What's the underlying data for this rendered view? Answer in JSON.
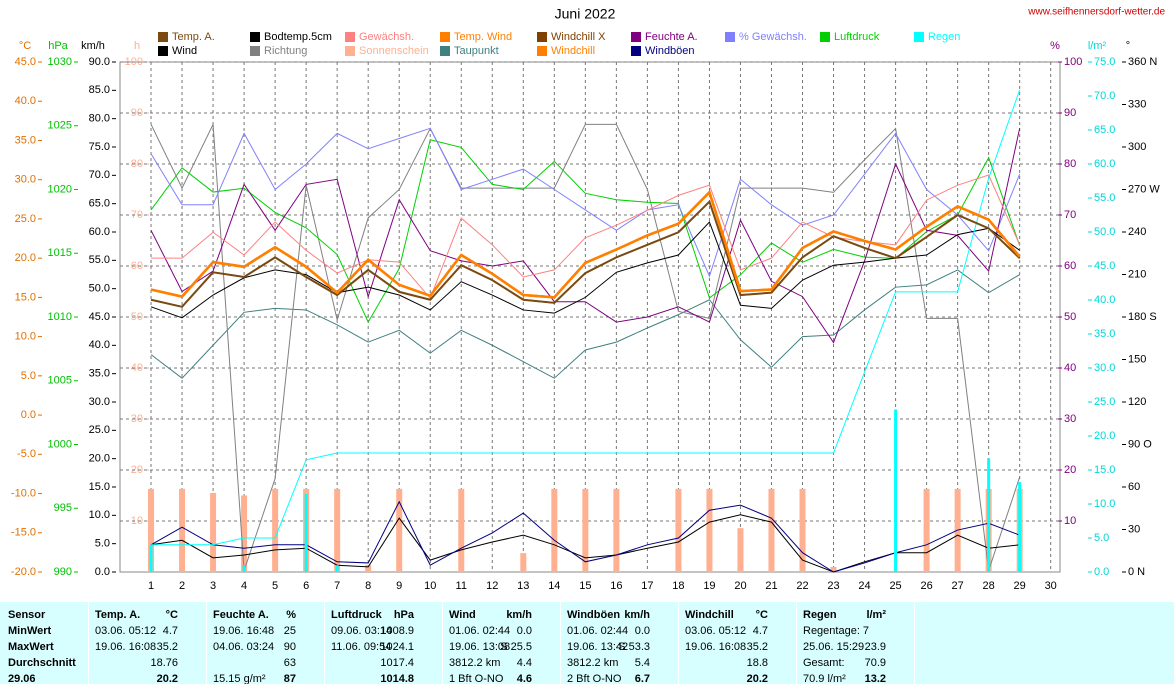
{
  "chart_data": {
    "type": "line",
    "title": "Juni 2022",
    "source": "www.seifhennersdorf-wetter.de",
    "x": [
      1,
      2,
      3,
      4,
      5,
      6,
      7,
      8,
      9,
      10,
      11,
      12,
      13,
      14,
      15,
      16,
      17,
      18,
      19,
      20,
      21,
      22,
      23,
      24,
      25,
      26,
      27,
      28,
      29
    ],
    "xlim": [
      0,
      30.3
    ],
    "xticks": [
      1,
      2,
      3,
      4,
      5,
      6,
      7,
      8,
      9,
      10,
      11,
      12,
      13,
      14,
      15,
      16,
      17,
      18,
      19,
      20,
      21,
      22,
      23,
      24,
      25,
      26,
      27,
      28,
      29,
      30
    ],
    "grid": true,
    "axes": {
      "c": {
        "label": "°C",
        "color": "#e07000",
        "lim": [
          -20,
          45
        ],
        "ticks": [
          {
            "value": 45,
            "label": "45.0"
          },
          {
            "value": 40,
            "label": "40.0"
          },
          {
            "value": 35,
            "label": "35.0"
          },
          {
            "value": 30,
            "label": "30.0"
          },
          {
            "value": 25,
            "label": "25.0"
          },
          {
            "value": 20,
            "label": "20.0"
          },
          {
            "value": 15,
            "label": "15.0"
          },
          {
            "value": 10,
            "label": "10.0"
          },
          {
            "value": 5,
            "label": "5.0"
          },
          {
            "value": 0,
            "label": "0.0"
          },
          {
            "value": -5,
            "label": "-5.0"
          },
          {
            "value": -10,
            "label": "-10.0"
          },
          {
            "value": -15,
            "label": "-15.0"
          },
          {
            "value": -20,
            "label": "-20.0"
          }
        ]
      },
      "hpa": {
        "label": "hPa",
        "color": "#00c000",
        "lim": [
          990,
          1030
        ],
        "ticks": [
          1030,
          1025,
          1020,
          1015,
          1010,
          1005,
          1000,
          995,
          990
        ]
      },
      "kmh": {
        "label": "km/h",
        "color": "#000000",
        "lim": [
          0,
          90
        ],
        "ticks": [
          {
            "value": 90,
            "label": "90.0"
          },
          {
            "value": 85,
            "label": "85.0"
          },
          {
            "value": 80,
            "label": "80.0"
          },
          {
            "value": 75,
            "label": "75.0"
          },
          {
            "value": 70,
            "label": "70.0"
          },
          {
            "value": 65,
            "label": "65.0"
          },
          {
            "value": 60,
            "label": "60.0"
          },
          {
            "value": 55,
            "label": "55.0"
          },
          {
            "value": 50,
            "label": "50.0"
          },
          {
            "value": 45,
            "label": "45.0"
          },
          {
            "value": 40,
            "label": "40.0"
          },
          {
            "value": 35,
            "label": "35.0"
          },
          {
            "value": 30,
            "label": "30.0"
          },
          {
            "value": 25,
            "label": "25.0"
          },
          {
            "value": 20,
            "label": "20.0"
          },
          {
            "value": 15,
            "label": "15.0"
          },
          {
            "value": 10,
            "label": "10.0"
          },
          {
            "value": 5,
            "label": "5.0"
          },
          {
            "value": 0,
            "label": "0.0"
          }
        ]
      },
      "h": {
        "label": "h",
        "color": "#ffb090",
        "lim": [
          0,
          100
        ],
        "ticks": [
          100,
          90,
          80,
          70,
          60,
          50,
          40,
          30,
          20,
          10
        ]
      },
      "pct": {
        "label": "%",
        "color": "#800080",
        "lim": [
          0,
          100
        ],
        "ticks": [
          100,
          90,
          80,
          70,
          60,
          50,
          40,
          30,
          20,
          10
        ]
      },
      "rain": {
        "label": "l/m²",
        "color": "#00d8d8",
        "lim": [
          0,
          75
        ],
        "ticks": [
          {
            "value": 75,
            "label": "75.0"
          },
          {
            "value": 70,
            "label": "70.0"
          },
          {
            "value": 65,
            "label": "65.0"
          },
          {
            "value": 60,
            "label": "60.0"
          },
          {
            "value": 55,
            "label": "55.0"
          },
          {
            "value": 50,
            "label": "50.0"
          },
          {
            "value": 45,
            "label": "45.0"
          },
          {
            "value": 40,
            "label": "40.0"
          },
          {
            "value": 35,
            "label": "35.0"
          },
          {
            "value": 30,
            "label": "30.0"
          },
          {
            "value": 25,
            "label": "25.0"
          },
          {
            "value": 20,
            "label": "20.0"
          },
          {
            "value": 15,
            "label": "15.0"
          },
          {
            "value": 10,
            "label": "10.0"
          },
          {
            "value": 5,
            "label": "5.0"
          },
          {
            "value": 0,
            "label": "0.0"
          }
        ]
      },
      "deg": {
        "label": "°",
        "color": "#000000",
        "lim": [
          0,
          360
        ],
        "ticks": [
          {
            "value": 360,
            "label": "360 N"
          },
          330,
          300,
          {
            "value": 270,
            "label": "270 W"
          },
          240,
          210,
          {
            "value": 180,
            "label": "180 S"
          },
          150,
          120,
          {
            "value": 90,
            "label": "90 O"
          },
          60,
          30,
          {
            "value": 0,
            "label": "0 N"
          }
        ]
      }
    },
    "series": [
      {
        "name": "Temp. A.",
        "color": "#7a4a10",
        "axis": "c",
        "width": 2,
        "values": [
          14.7,
          13.8,
          18.2,
          17.6,
          20.1,
          17.6,
          15.3,
          18.5,
          15.7,
          14.7,
          19.1,
          17.2,
          14.7,
          14.3,
          18.1,
          20.1,
          21.7,
          23.3,
          27.2,
          15.3,
          15.6,
          20.1,
          22.8,
          21.3,
          20.0,
          22.7,
          25.5,
          23.8,
          20.0
        ]
      },
      {
        "name": "Bodtemp.5cm",
        "color": "#000000",
        "axis": "c",
        "width": 1,
        "values": [
          13.8,
          12.4,
          15.3,
          17.5,
          18.5,
          17.9,
          15.6,
          16.3,
          15.3,
          13.4,
          17.0,
          15.3,
          13.4,
          13.0,
          15.0,
          18.2,
          19.4,
          20.4,
          24.6,
          14.0,
          13.6,
          17.2,
          19.1,
          19.5,
          20.0,
          20.4,
          23.0,
          23.8,
          21.0
        ]
      },
      {
        "name": "Gewächsh.",
        "color": "#ff8080",
        "axis": "c",
        "width": 1,
        "values": [
          20.0,
          20.0,
          23.3,
          20.4,
          24.6,
          21.0,
          18.1,
          19.8,
          19.5,
          14.9,
          25.1,
          21.7,
          17.6,
          18.5,
          22.6,
          24.2,
          26.1,
          28.0,
          29.3,
          18.5,
          20.0,
          24.6,
          22.7,
          22.1,
          21.7,
          27.4,
          29.3,
          30.6,
          21.7
        ]
      },
      {
        "name": "Temp. Wind",
        "color": "#ff8000",
        "axis": "c",
        "width": 2.5,
        "values": [
          16.0,
          15.1,
          19.5,
          18.9,
          21.4,
          18.9,
          15.6,
          19.8,
          16.6,
          15.2,
          20.4,
          18.0,
          15.3,
          15.0,
          19.4,
          21.1,
          22.9,
          24.4,
          28.4,
          15.8,
          16.0,
          21.3,
          23.4,
          22.2,
          21.1,
          24.0,
          26.6,
          24.9,
          20.2
        ]
      },
      {
        "name": "Windchill X",
        "color": "#804000",
        "axis": "c",
        "width": 1.5,
        "values": [
          14.7,
          13.8,
          18.2,
          17.6,
          20.1,
          17.6,
          15.3,
          18.5,
          15.7,
          14.7,
          19.1,
          17.2,
          14.7,
          14.3,
          18.1,
          20.1,
          21.7,
          23.3,
          27.2,
          15.3,
          15.6,
          20.1,
          22.8,
          21.3,
          20.0,
          22.7,
          25.5,
          23.8,
          20.0
        ]
      },
      {
        "name": "Feuchte A.",
        "color": "#800080",
        "axis": "pct",
        "width": 1,
        "values": [
          67,
          55,
          59,
          76,
          67,
          76,
          77,
          54,
          73,
          63,
          61,
          60,
          61,
          53,
          53,
          49,
          50,
          52,
          49,
          69,
          57,
          54,
          45,
          61,
          80,
          67,
          66,
          59,
          87
        ]
      },
      {
        "name": "% Gewächsh.",
        "color": "#8080ff",
        "axis": "pct",
        "width": 1,
        "values": [
          82,
          72,
          72,
          86,
          75,
          80,
          86,
          83,
          85,
          87,
          75,
          77,
          79,
          75,
          71,
          67,
          71,
          72,
          58,
          77,
          72,
          68,
          70,
          78,
          86,
          75,
          70,
          63,
          78
        ]
      },
      {
        "name": "Luftdruck",
        "color": "#00d000",
        "axis": "hpa",
        "width": 1,
        "values": [
          1018.4,
          1021.7,
          1019.8,
          1020.1,
          1018.2,
          1017.0,
          1014.9,
          1009.6,
          1013.8,
          1023.9,
          1023.3,
          1020.4,
          1020.0,
          1022.2,
          1019.7,
          1019.2,
          1019.0,
          1018.9,
          1011.5,
          1013.3,
          1015.8,
          1014.3,
          1015.3,
          1014.7,
          1014.6,
          1016.7,
          1018.0,
          1022.5,
          1015.6
        ]
      },
      {
        "name": "Regen",
        "color": "#00ffff",
        "axis": "rain",
        "width": 1,
        "values": [
          4.0,
          4.0,
          4.0,
          5.0,
          5.0,
          16.5,
          17.5,
          17.5,
          17.5,
          17.5,
          17.5,
          17.5,
          17.5,
          17.5,
          17.5,
          17.5,
          17.5,
          17.5,
          17.5,
          17.5,
          17.5,
          17.5,
          17.5,
          29.4,
          41.2,
          41.2,
          41.2,
          57.9,
          70.9
        ],
        "daily": [
          4.0,
          0,
          0,
          1.0,
          0,
          11.5,
          1.0,
          0,
          0,
          0,
          0,
          0,
          0,
          0,
          0,
          0,
          0,
          0,
          0,
          0,
          0,
          0,
          0,
          0,
          23.9,
          0,
          0,
          16.7,
          13.2
        ]
      },
      {
        "name": "Wind",
        "color": "#000000",
        "axis": "kmh",
        "width": 1,
        "values": [
          4.8,
          5.6,
          2.5,
          3.0,
          3.9,
          4.2,
          1.2,
          0.9,
          9.5,
          2.1,
          3.9,
          5.3,
          6.5,
          4.8,
          2.5,
          3.0,
          4.2,
          5.3,
          8.8,
          10.1,
          8.8,
          2.1,
          0,
          1.8,
          3.4,
          3.4,
          6.5,
          4.2,
          4.8
        ]
      },
      {
        "name": "Richtung",
        "color": "#808080",
        "axis": "deg",
        "width": 1,
        "values": [
          316,
          271,
          316,
          1,
          66,
          273,
          178,
          250,
          270,
          313,
          271,
          271,
          271,
          271,
          316,
          316,
          270,
          184,
          179,
          271,
          271,
          271,
          268,
          291,
          313,
          179,
          179,
          1,
          67
        ]
      },
      {
        "name": "Sonnenschein",
        "color": "#ffb090",
        "axis": "h",
        "bars": true,
        "values": [
          16.3,
          16.3,
          15.5,
          15.0,
          16.3,
          16.3,
          16.3,
          1.4,
          16.3,
          0,
          16.3,
          0,
          3.7,
          16.3,
          16.3,
          16.3,
          0,
          16.3,
          16.3,
          8.6,
          16.3,
          16.3,
          1.0,
          0,
          0,
          16.3,
          16.3,
          16.3,
          16.3
        ]
      },
      {
        "name": "Taupunkt",
        "color": "#408080",
        "axis": "c",
        "width": 1,
        "values": [
          7.7,
          4.7,
          8.9,
          13.1,
          13.6,
          13.4,
          11.5,
          9.3,
          10.8,
          7.9,
          10.8,
          8.9,
          6.8,
          4.7,
          8.3,
          9.3,
          11.1,
          12.8,
          14.7,
          9.6,
          6.1,
          10.0,
          10.2,
          13.4,
          16.3,
          16.6,
          18.5,
          15.6,
          17.9
        ]
      },
      {
        "name": "Windchill",
        "color": "#ff8000",
        "axis": "c",
        "width": 2.5,
        "values": [
          16.0,
          15.1,
          19.5,
          18.9,
          21.4,
          18.9,
          15.6,
          19.8,
          16.6,
          15.2,
          20.4,
          18.0,
          15.3,
          15.0,
          19.4,
          21.1,
          22.9,
          24.4,
          28.4,
          15.8,
          16.0,
          21.3,
          23.4,
          22.2,
          21.1,
          24.0,
          26.6,
          24.9,
          20.2
        ]
      },
      {
        "name": "Windböen",
        "color": "#000080",
        "axis": "kmh",
        "width": 1,
        "values": [
          4.8,
          7.9,
          4.8,
          4.2,
          4.8,
          4.8,
          1.8,
          1.6,
          12.4,
          1.2,
          4.2,
          6.9,
          10.4,
          5.6,
          1.8,
          3.0,
          4.8,
          6.0,
          10.9,
          11.8,
          9.5,
          3.4,
          0,
          1.6,
          3.4,
          4.8,
          7.4,
          8.6,
          6.5
        ]
      }
    ]
  },
  "table": {
    "rows": [
      [
        "Sensor",
        "Temp. A.",
        "°C",
        "Feuchte A.",
        "%",
        "Luftdruck",
        "hPa",
        "Wind",
        "km/h",
        "Windböen",
        "km/h",
        "Windchill",
        "°C",
        "Regen",
        "l/m²"
      ],
      [
        "MinWert",
        "03.06.  05:12",
        "4.7",
        "19.06.  16:48",
        "25",
        "09.06.  03:14",
        "1008.9",
        "01.06.  02:44",
        "0.0",
        "01.06.  02:44",
        "0.0",
        "03.06.  05:12",
        "4.7",
        "Regentage: 7",
        null
      ],
      [
        "MaxWert",
        "19.06.  16:08",
        "35.2",
        "04.06.  03:24",
        "90",
        "11.06.  09:54",
        "1024.1",
        "19.06.  13:08",
        "S 25.5",
        "19.06.  13:42",
        "S 53.3",
        "19.06.  16:08",
        "35.2",
        "25.06.  15:29",
        "23.9"
      ],
      [
        "Durchschnitt",
        null,
        "18.76",
        null,
        "63",
        null,
        "1017.4",
        "3812.2 km",
        "4.4",
        "3812.2 km",
        "5.4",
        null,
        "18.8",
        "Gesamt:",
        "70.9"
      ],
      [
        "29.06",
        null,
        "20.2",
        "15.15 g/m²",
        "87",
        null,
        "1014.8",
        "1 Bft O-NO",
        "4.6",
        "2 Bft O-NO",
        "6.7",
        null,
        "20.2",
        "70.9 l/m²",
        "13.2"
      ]
    ]
  }
}
